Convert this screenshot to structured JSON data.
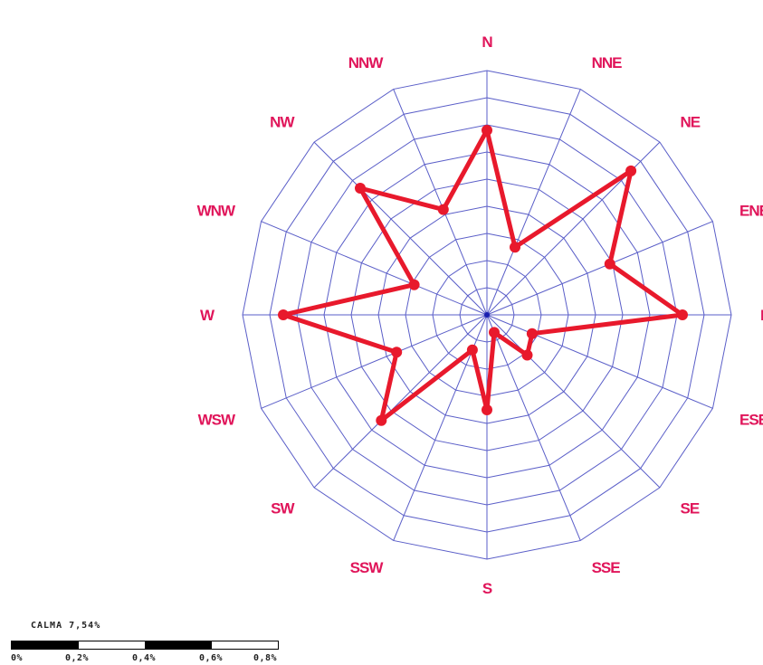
{
  "chart_data": {
    "type": "radar",
    "title": "",
    "directions": [
      "N",
      "NNE",
      "NE",
      "ENE",
      "E",
      "ESE",
      "SE",
      "SSE",
      "S",
      "SSW",
      "SW",
      "WSW",
      "W",
      "WNW",
      "NW",
      "NNW"
    ],
    "values": [
      0.68,
      0.27,
      0.75,
      0.49,
      0.72,
      0.18,
      0.21,
      0.07,
      0.35,
      0.14,
      0.55,
      0.36,
      0.75,
      0.29,
      0.66,
      0.42
    ],
    "rmax": 0.9,
    "rings": 9,
    "grid": true,
    "colors": {
      "line": "#e8192c",
      "grid": "#5a5ec8",
      "label": "#e0155a"
    },
    "calm_label": "CALMA 7,54%",
    "scale": {
      "ticks": [
        "0%",
        "0,2%",
        "0,4%",
        "0,6%",
        "0,8%"
      ],
      "segments": [
        "black",
        "white",
        "black",
        "white"
      ]
    }
  }
}
